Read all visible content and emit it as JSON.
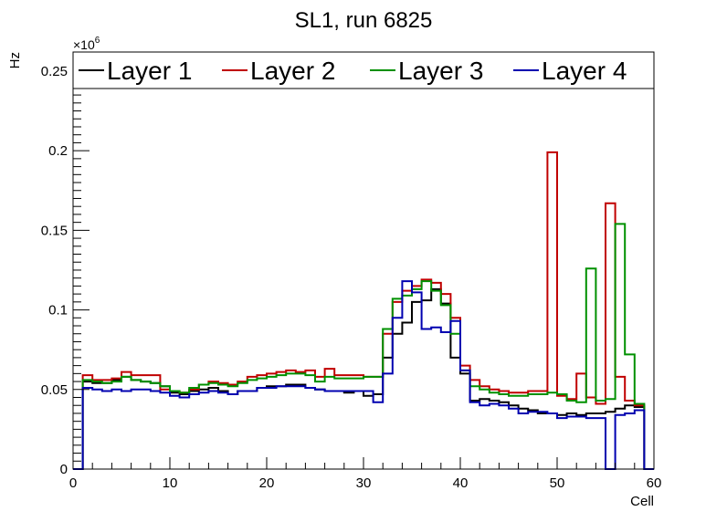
{
  "chart_data": {
    "type": "line",
    "title": "SL1, run 6825",
    "xlabel": "Cell",
    "ylabel": "Hz",
    "y_multiplier": "×10",
    "y_multiplier_exp": "6",
    "xlim": [
      0,
      60
    ],
    "ylim": [
      0,
      0.262
    ],
    "x_ticks": [
      0,
      10,
      20,
      30,
      40,
      50,
      60
    ],
    "x_tick_labels": [
      "0",
      "10",
      "20",
      "30",
      "40",
      "50",
      "60"
    ],
    "y_ticks": [
      0,
      0.05,
      0.1,
      0.15,
      0.2,
      0.25
    ],
    "y_tick_labels": [
      "0",
      "0.05",
      "0.1",
      "0.15",
      "0.2",
      "0.25"
    ],
    "grid": false,
    "legend_position": "top",
    "series": [
      {
        "name": "Layer 1",
        "color": "#000000",
        "values": [
          0,
          0.055,
          0.054,
          0.054,
          0.056,
          0.058,
          0.056,
          0.055,
          0.054,
          0.052,
          0.048,
          0.047,
          0.049,
          0.05,
          0.051,
          0.049,
          0.047,
          0.049,
          0.049,
          0.051,
          0.052,
          0.052,
          0.053,
          0.053,
          0.051,
          0.05,
          0.049,
          0.049,
          0.048,
          0.049,
          0.046,
          0.047,
          0.07,
          0.085,
          0.092,
          0.105,
          0.106,
          0.113,
          0.104,
          0.07,
          0.06,
          0.043,
          0.044,
          0.043,
          0.042,
          0.04,
          0.038,
          0.037,
          0.035,
          0.035,
          0.034,
          0.035,
          0.034,
          0.035,
          0.035,
          0.036,
          0.038,
          0.04,
          0.039,
          0
        ]
      },
      {
        "name": "Layer 2",
        "color": "#c00000",
        "values": [
          0,
          0.059,
          0.056,
          0.056,
          0.057,
          0.061,
          0.059,
          0.059,
          0.059,
          0.05,
          0.049,
          0.048,
          0.05,
          0.053,
          0.055,
          0.054,
          0.053,
          0.055,
          0.058,
          0.059,
          0.06,
          0.061,
          0.062,
          0.061,
          0.062,
          0.058,
          0.063,
          0.059,
          0.059,
          0.059,
          0.058,
          0.058,
          0.085,
          0.105,
          0.112,
          0.115,
          0.119,
          0.117,
          0.11,
          0.095,
          0.065,
          0.056,
          0.052,
          0.05,
          0.049,
          0.048,
          0.048,
          0.049,
          0.049,
          0.199,
          0.046,
          0.044,
          0.06,
          0.045,
          0.041,
          0.167,
          0.058,
          0.043,
          0.04,
          0
        ]
      },
      {
        "name": "Layer 3",
        "color": "#009000",
        "values": [
          0,
          0.056,
          0.055,
          0.054,
          0.055,
          0.058,
          0.056,
          0.055,
          0.054,
          0.052,
          0.049,
          0.048,
          0.051,
          0.053,
          0.054,
          0.053,
          0.052,
          0.054,
          0.056,
          0.057,
          0.058,
          0.059,
          0.06,
          0.06,
          0.059,
          0.055,
          0.058,
          0.057,
          0.057,
          0.057,
          0.058,
          0.058,
          0.088,
          0.107,
          0.109,
          0.113,
          0.118,
          0.112,
          0.103,
          0.085,
          0.062,
          0.052,
          0.05,
          0.048,
          0.047,
          0.046,
          0.046,
          0.047,
          0.047,
          0.048,
          0.047,
          0.043,
          0.042,
          0.126,
          0.043,
          0.044,
          0.154,
          0.072,
          0.041,
          0
        ]
      },
      {
        "name": "Layer 4",
        "color": "#0000b0",
        "values": [
          0,
          0.051,
          0.05,
          0.049,
          0.05,
          0.049,
          0.05,
          0.05,
          0.049,
          0.048,
          0.046,
          0.045,
          0.047,
          0.048,
          0.049,
          0.048,
          0.047,
          0.049,
          0.049,
          0.051,
          0.051,
          0.052,
          0.052,
          0.052,
          0.051,
          0.05,
          0.049,
          0.049,
          0.049,
          0.049,
          0.049,
          0.042,
          0.06,
          0.095,
          0.118,
          0.111,
          0.088,
          0.089,
          0.086,
          0.093,
          0.062,
          0.042,
          0.04,
          0.041,
          0.04,
          0.038,
          0.035,
          0.036,
          0.036,
          0.035,
          0.032,
          0.033,
          0.033,
          0.032,
          0.032,
          0,
          0.034,
          0.035,
          0.037,
          0
        ]
      }
    ]
  }
}
